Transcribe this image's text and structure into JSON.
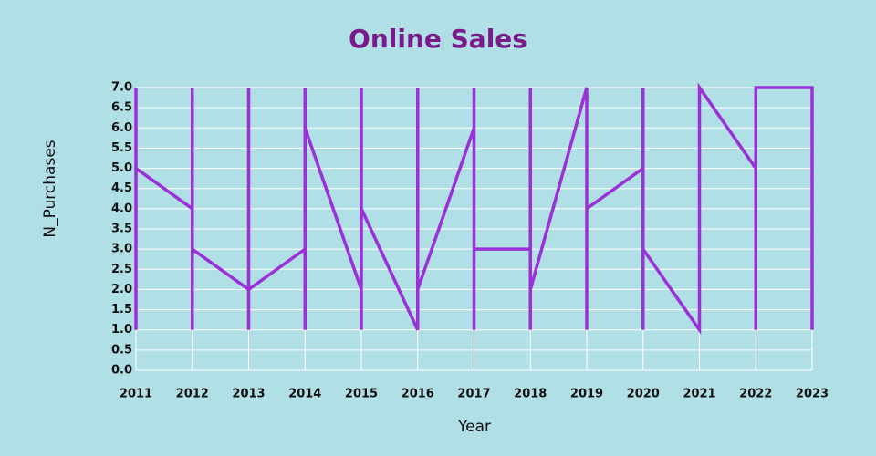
{
  "chart_data": {
    "type": "line",
    "title": "Online Sales",
    "x_label": "Year",
    "y_label": "N_Purchases",
    "x": [
      2011,
      2011,
      2011,
      2012,
      2012,
      2012,
      2012,
      2013,
      2013,
      2013,
      2013,
      2014,
      2014,
      2014,
      2014,
      2015,
      2015,
      2015,
      2015,
      2016,
      2016,
      2016,
      2016,
      2017,
      2017,
      2017,
      2017,
      2018,
      2018,
      2018,
      2018,
      2019,
      2019,
      2019,
      2020,
      2020,
      2020,
      2020,
      2021,
      2021,
      2022,
      2022,
      2022,
      2023,
      2023
    ],
    "values": [
      1,
      7,
      5,
      4,
      7,
      1,
      3,
      2,
      7,
      1,
      2,
      3,
      7,
      1,
      6,
      2,
      7,
      1,
      4,
      1,
      7,
      1,
      2,
      6,
      7,
      1,
      3,
      3,
      7,
      1,
      2,
      7,
      1,
      4,
      5,
      7,
      1,
      3,
      1,
      7,
      5,
      1,
      7,
      7,
      1
    ],
    "color": "#9b30d9",
    "xlim": [
      2011,
      2023
    ],
    "xticks": [
      2011,
      2012,
      2013,
      2014,
      2015,
      2016,
      2017,
      2018,
      2019,
      2020,
      2021,
      2022,
      2023
    ],
    "ylim": [
      0,
      7
    ],
    "yticks": [
      {
        "value": 0,
        "label": "0.0"
      },
      0.5,
      {
        "value": 1,
        "label": "1.0"
      },
      1.5,
      {
        "value": 2,
        "label": "2.0"
      },
      2.5,
      {
        "value": 3,
        "label": "3.0"
      },
      3.5,
      {
        "value": 4,
        "label": "4.0"
      },
      4.5,
      {
        "value": 5,
        "label": "5.0"
      },
      5.5,
      {
        "value": 6,
        "label": "6.0"
      },
      6.5,
      {
        "value": 7,
        "label": "7.0"
      }
    ],
    "grid": true
  }
}
